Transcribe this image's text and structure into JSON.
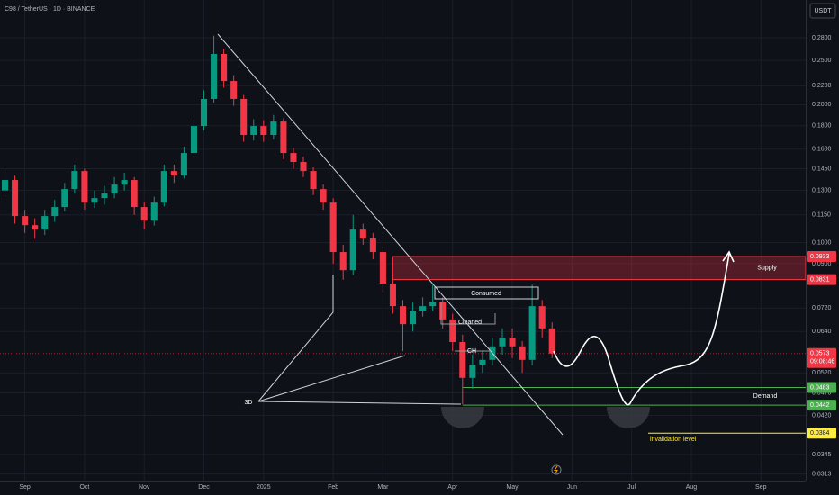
{
  "header": {
    "symbol": "C98 / TetherUS · 1D · BINANCE",
    "currency": "USDT"
  },
  "chart_data": {
    "type": "candlestick",
    "categories": [
      null,
      null,
      "Sep",
      null,
      null,
      null,
      null,
      null,
      "Oct",
      null,
      null,
      null,
      null,
      null,
      "Nov",
      null,
      null,
      null,
      null,
      null,
      "Dec",
      null,
      null,
      null,
      null,
      null,
      "2025",
      null,
      null,
      null,
      null,
      null,
      null,
      "Feb",
      null,
      null,
      null,
      null,
      "Mar",
      null,
      null,
      null,
      null,
      null,
      null,
      "Apr",
      null,
      null,
      null,
      null,
      null,
      "May",
      null,
      null,
      null,
      null,
      null,
      "Jun",
      null,
      null,
      null,
      null,
      null,
      "Jul",
      null,
      null,
      null,
      null,
      null,
      "Aug",
      null,
      null,
      null,
      null,
      null,
      null,
      "Sep",
      null,
      null,
      null,
      null
    ],
    "open": [
      0.13,
      0.137,
      0.1143,
      0.1092,
      0.1068,
      0.1143,
      0.1196,
      0.1309,
      0.1433,
      0.1223,
      0.1251,
      0.128,
      0.1339,
      0.137,
      0.1196,
      0.1117,
      0.1223,
      0.1433,
      0.1401,
      0.1569,
      0.1797,
      0.2059,
      0.2581,
      0.2253,
      0.2059,
      0.1718,
      0.1797,
      0.1718,
      0.1838,
      0.1569,
      0.15,
      0.1433,
      0.1309,
      0.1223,
      0.0954,
      0.0871,
      0.1068,
      0.1021,
      0.0954,
      0.0814,
      0.0727,
      0.0664,
      0.0711,
      0.0727,
      0.0744,
      0.068,
      0.0607,
      0.0507,
      0.0542,
      0.0555,
      0.0594,
      0.0621,
      0.0594,
      0.0555,
      0.0727,
      0.065,
      null,
      null,
      null,
      null,
      null,
      null,
      null,
      null,
      null,
      null,
      null,
      null,
      null,
      null,
      null,
      null,
      null,
      null,
      null,
      null,
      null,
      null,
      null,
      null,
      null
    ],
    "high": [
      0.143,
      0.14,
      0.118,
      0.113,
      0.118,
      0.124,
      0.135,
      0.148,
      0.145,
      0.13,
      0.133,
      0.139,
      0.142,
      0.139,
      0.123,
      0.126,
      0.148,
      0.148,
      0.162,
      0.186,
      0.215,
      0.283,
      0.265,
      0.232,
      0.21,
      0.186,
      0.185,
      0.19,
      0.187,
      0.161,
      0.154,
      0.146,
      0.134,
      0.125,
      0.099,
      0.115,
      0.11,
      0.105,
      0.098,
      0.084,
      0.075,
      0.074,
      0.076,
      0.081,
      0.076,
      0.07,
      0.063,
      0.057,
      0.058,
      0.062,
      0.065,
      0.065,
      0.061,
      0.081,
      0.075,
      0.067,
      null,
      null,
      null,
      null,
      null,
      null,
      null,
      null,
      null,
      null,
      null,
      null,
      null,
      null,
      null,
      null,
      null,
      null,
      null,
      null,
      null,
      null,
      null,
      null,
      null
    ],
    "low": [
      0.126,
      0.11,
      0.105,
      0.102,
      0.104,
      0.111,
      0.117,
      0.128,
      0.118,
      0.119,
      0.121,
      0.125,
      0.13,
      0.115,
      0.107,
      0.109,
      0.12,
      0.135,
      0.138,
      0.154,
      0.176,
      0.202,
      0.218,
      0.199,
      0.166,
      0.167,
      0.166,
      0.168,
      0.152,
      0.145,
      0.139,
      0.127,
      0.118,
      0.09,
      0.083,
      0.085,
      0.099,
      0.092,
      0.078,
      0.07,
      0.058,
      0.064,
      0.069,
      0.071,
      0.065,
      0.058,
      0.0444,
      0.048,
      0.052,
      0.054,
      0.057,
      0.056,
      0.052,
      0.054,
      0.062,
      0.056,
      null,
      null,
      null,
      null,
      null,
      null,
      null,
      null,
      null,
      null,
      null,
      null,
      null,
      null,
      null,
      null,
      null,
      null,
      null,
      null,
      null,
      null,
      null,
      null,
      null
    ],
    "close": [
      0.137,
      0.1143,
      0.1092,
      0.1068,
      0.1143,
      0.1196,
      0.1309,
      0.1433,
      0.1223,
      0.1251,
      0.128,
      0.1339,
      0.137,
      0.1196,
      0.1117,
      0.1223,
      0.1433,
      0.1401,
      0.1569,
      0.1797,
      0.2059,
      0.2581,
      0.2253,
      0.2059,
      0.1718,
      0.1797,
      0.1718,
      0.1838,
      0.1569,
      0.15,
      0.1433,
      0.1309,
      0.1223,
      0.0954,
      0.0871,
      0.1068,
      0.1021,
      0.0954,
      0.0814,
      0.0727,
      0.0664,
      0.0711,
      0.0727,
      0.0744,
      0.068,
      0.0607,
      0.0507,
      0.0542,
      0.0555,
      0.0594,
      0.0621,
      0.0594,
      0.0555,
      0.0727,
      0.065,
      0.0573,
      null,
      null,
      null,
      null,
      null,
      null,
      null,
      null,
      null,
      null,
      null,
      null,
      null,
      null,
      null,
      null,
      null,
      null,
      null,
      null,
      null,
      null,
      null,
      null,
      null
    ],
    "up_color": "#089981",
    "down_color": "#f23645",
    "log_scale": true,
    "grid": true,
    "ylim": [
      0.0308,
      0.3386
    ],
    "yticks": [
      {
        "value": 0.28,
        "label": "0.2800"
      },
      {
        "value": 0.25,
        "label": "0.2500"
      },
      {
        "value": 0.22,
        "label": "0.2200"
      },
      {
        "value": 0.2,
        "label": "0.2000"
      },
      {
        "value": 0.18,
        "label": "0.1800"
      },
      {
        "value": 0.16,
        "label": "0.1600"
      },
      {
        "value": 0.145,
        "label": "0.1450"
      },
      {
        "value": 0.13,
        "label": "0.1300"
      },
      {
        "value": 0.115,
        "label": "0.1150"
      },
      {
        "value": 0.1,
        "label": "0.1000"
      },
      {
        "value": 0.09,
        "label": "0.0900"
      },
      {
        "value": 0.072,
        "label": "0.0720"
      },
      {
        "value": 0.064,
        "label": "0.0640"
      },
      {
        "value": 0.052,
        "label": "0.0520"
      },
      {
        "value": 0.047,
        "label": "0.0470"
      },
      {
        "value": 0.042,
        "label": "0.0420"
      },
      {
        "value": 0.0345,
        "label": "0.0345"
      },
      {
        "value": 0.0313,
        "label": "0.0313"
      }
    ],
    "supply": {
      "label": "Supply",
      "top": 0.0933,
      "bottom": 0.0831,
      "color": "#f23645"
    },
    "demand": {
      "label": "Demand",
      "top": 0.0483,
      "bottom": 0.0442,
      "color": "#4caf50"
    },
    "invalidation": {
      "label": "invalidation level",
      "value": 0.0384,
      "color": "#ffeb3b"
    },
    "last_price": {
      "value": 0.0573,
      "countdown": "09:08:46",
      "color": "#f23645"
    },
    "annotations": [
      "Consumed",
      "Cleaned",
      "CH",
      "3D"
    ]
  }
}
